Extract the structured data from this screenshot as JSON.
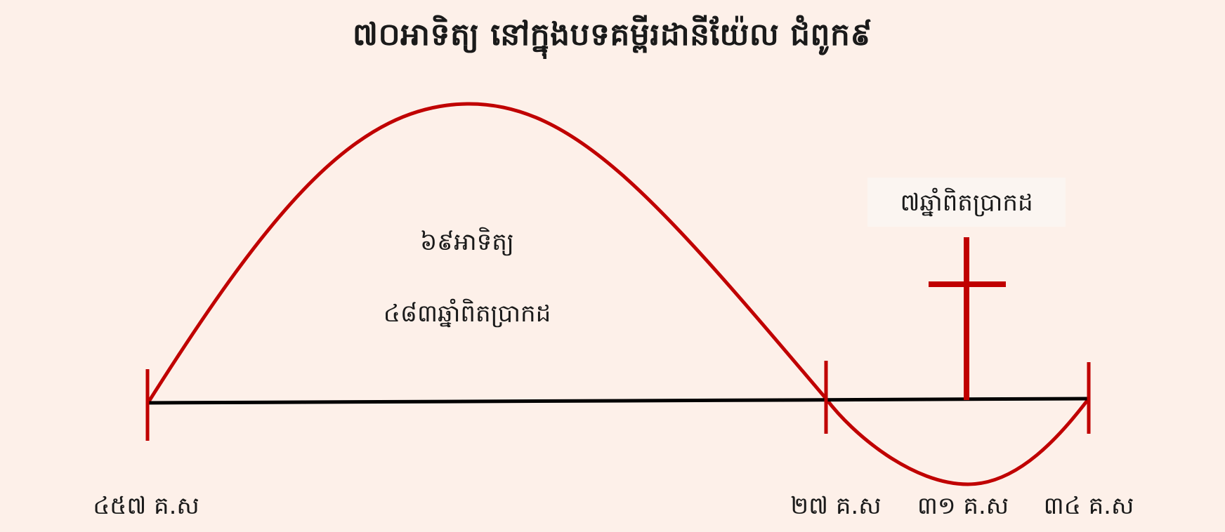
{
  "title": "៧០អាទិត្យ នៅក្នុងបទគម្ពីរដានីយ៉ែល ជំពូក៩",
  "first_period": {
    "weeks_label": "៦៩អាទិត្យ",
    "years_label": "៤៨៣ឆ្នាំពិតប្រាកដ"
  },
  "second_period": {
    "label": "៧ឆ្នាំពិតប្រាកដ"
  },
  "timeline_marks": [
    {
      "label": "៤៥៧ គ.ស"
    },
    {
      "label": "២៧ គ.ស"
    },
    {
      "label": "៣១ គ.ស"
    },
    {
      "label": "៣៤ គ.ស"
    }
  ],
  "colors": {
    "background": "#fdf0e9",
    "curve": "#c00000",
    "axis": "#000000",
    "text": "#1a1a1a"
  },
  "icons": {
    "cross": "cross-icon"
  }
}
